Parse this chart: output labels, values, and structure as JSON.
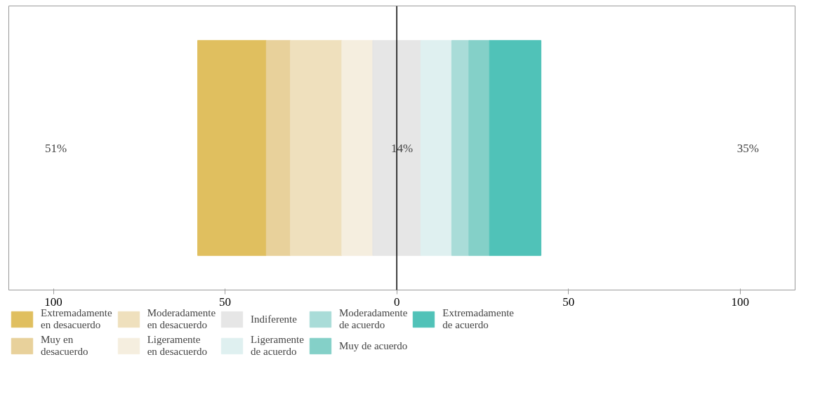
{
  "chart_data": {
    "type": "bar",
    "orientation": "horizontal",
    "categories": [
      null
    ],
    "series": [
      {
        "name": "Extremadamente en desacuerdo",
        "color": "#e0bf5f",
        "values": [
          20
        ],
        "base": [
          -58
        ]
      },
      {
        "name": "Muy en desacuerdo",
        "color": "#e8d19b",
        "values": [
          7
        ],
        "base": [
          -38
        ]
      },
      {
        "name": "Moderadamente en desacuerdo",
        "color": "#efe0bd",
        "values": [
          15
        ],
        "base": [
          -31
        ]
      },
      {
        "name": "Ligeramente en desacuerdo",
        "color": "#f5eedf",
        "values": [
          9
        ],
        "base": [
          -16
        ]
      },
      {
        "name": "Indiferente",
        "color": "#e6e6e6",
        "values": [
          14
        ],
        "base": [
          -7
        ]
      },
      {
        "name": "Ligeramente de acuerdo",
        "color": "#dff0f0",
        "values": [
          9
        ],
        "base": [
          7
        ]
      },
      {
        "name": "Moderadamente de acuerdo",
        "color": "#a9dcd8",
        "values": [
          5
        ],
        "base": [
          16
        ]
      },
      {
        "name": "Muy de acuerdo",
        "color": "#84d0c8",
        "values": [
          6
        ],
        "base": [
          21
        ]
      },
      {
        "name": "Extremadamente de acuerdo",
        "color": "#50c2b8",
        "values": [
          15
        ],
        "base": [
          27
        ]
      }
    ],
    "xlim": [
      -113,
      116
    ],
    "xticks": [
      {
        "value": -100,
        "label": "100"
      },
      {
        "value": -50,
        "label": "50"
      },
      0,
      50,
      100
    ],
    "ref_lines": [
      {
        "axis": "x",
        "value": 0,
        "color": "#000000"
      }
    ],
    "annotations": [
      "51%",
      "14%",
      "35%"
    ],
    "legend": "bottom",
    "grid": false
  }
}
